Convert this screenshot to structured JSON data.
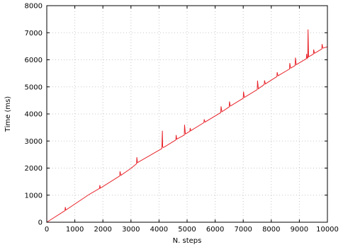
{
  "chart_data": {
    "type": "line",
    "title": "",
    "xlabel": "N. steps",
    "ylabel": "Time (ms)",
    "xlim": [
      0,
      10000
    ],
    "ylim": [
      0,
      8000
    ],
    "x_ticks": [
      0,
      1000,
      2000,
      3000,
      4000,
      5000,
      6000,
      7000,
      8000,
      9000,
      10000
    ],
    "y_ticks": [
      0,
      1000,
      2000,
      3000,
      4000,
      5000,
      6000,
      7000,
      8000
    ],
    "x_tick_labels": [
      "0",
      "1000",
      "2000",
      "3000",
      "4000",
      "5000",
      "6000",
      "7000",
      "8000",
      "9000",
      "10000"
    ],
    "y_tick_labels": [
      "0",
      "1000",
      "2000",
      "3000",
      "4000",
      "5000",
      "6000",
      "7000",
      "8000"
    ],
    "grid": true,
    "legend": false,
    "series_color": "#e8242b",
    "series": [
      {
        "x": [
          0,
          650,
          660,
          680,
          1500,
          1880,
          1890,
          1910,
          2600,
          2610,
          2640,
          3000,
          3200,
          3210,
          3230,
          4100,
          4120,
          4130,
          4160,
          4600,
          4610,
          4630,
          4900,
          4910,
          4940,
          5100,
          5110,
          5130,
          5600,
          5610,
          5640,
          6200,
          6210,
          6240,
          6500,
          6510,
          6540,
          7000,
          7010,
          7040,
          7500,
          7510,
          7540,
          7750,
          7760,
          7790,
          8200,
          8210,
          8240,
          8650,
          8660,
          8690,
          8850,
          8860,
          8890,
          9250,
          9260,
          9280,
          9300,
          9310,
          9330,
          9500,
          9510,
          9540,
          9800,
          9810,
          9840,
          10000
        ],
        "y": [
          0,
          430,
          560,
          450,
          1020,
          1250,
          1370,
          1260,
          1710,
          1880,
          1730,
          1990,
          2160,
          2400,
          2200,
          2720,
          3380,
          2780,
          2760,
          3040,
          3220,
          3070,
          3220,
          3600,
          3260,
          3360,
          3480,
          3380,
          3680,
          3800,
          3700,
          4050,
          4280,
          4080,
          4260,
          4460,
          4290,
          4580,
          4820,
          4610,
          4900,
          5230,
          4930,
          5090,
          5240,
          5110,
          5380,
          5540,
          5410,
          5660,
          5880,
          5690,
          5790,
          6080,
          5820,
          6040,
          6220,
          6060,
          6070,
          7120,
          6110,
          6210,
          6380,
          6240,
          6400,
          6580,
          6430,
          6480
        ]
      }
    ]
  }
}
